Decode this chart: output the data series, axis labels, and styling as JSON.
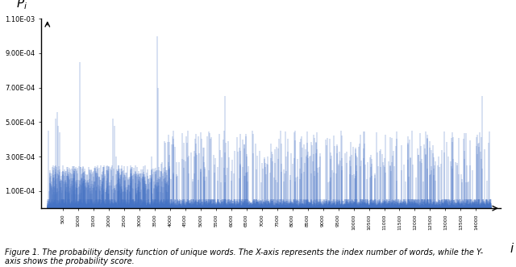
{
  "ylabel": "$\\mathbf{\\mathit{P_i}}$",
  "xlabel": "$\\mathbf{\\mathit{i}}$",
  "caption_line1": "Figure 1. The probability density function of unique words. The X-axis represents the index number of words, while the Y-",
  "caption_line2": "axis shows the probability score.",
  "n_words": 14500,
  "ymax": 0.0011,
  "yticks": [
    0.0001,
    0.0003,
    0.0005,
    0.0007,
    0.0009,
    0.0011
  ],
  "ytick_labels": [
    "1.00E-04",
    "3.00E-04",
    "5.00E-04",
    "7.00E-04",
    "9.00E-04",
    "1.10E-03"
  ],
  "bar_color": "#4472C4",
  "background_color": "#ffffff",
  "seed": 42,
  "figsize": [
    6.4,
    3.31
  ],
  "dpi": 100
}
